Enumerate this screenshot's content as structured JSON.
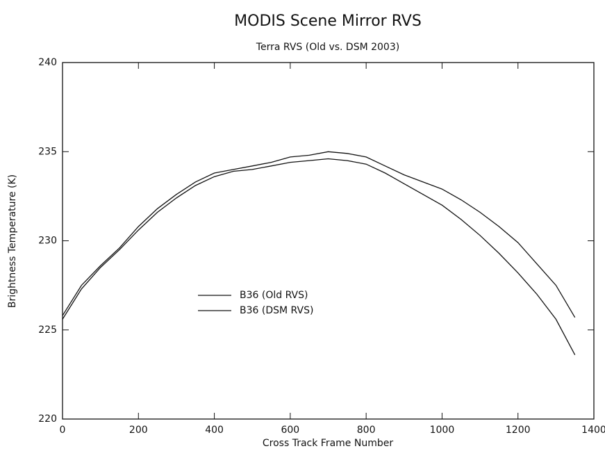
{
  "chart_data": {
    "type": "line",
    "title": "MODIS Scene Mirror RVS",
    "subtitle": "Terra RVS (Old vs. DSM 2003)",
    "x_label": "Cross Track Frame Number",
    "y_label": "Brightness Temperature (K)",
    "x": [
      0,
      50,
      100,
      150,
      200,
      250,
      300,
      350,
      400,
      450,
      500,
      550,
      600,
      650,
      700,
      750,
      800,
      850,
      900,
      950,
      1000,
      1050,
      1100,
      1150,
      1200,
      1250,
      1300,
      1350
    ],
    "series": [
      {
        "name": "B36 (Old RVS)",
        "color": "#111111",
        "values": [
          225.8,
          227.5,
          228.6,
          229.6,
          230.8,
          231.8,
          232.6,
          233.3,
          233.8,
          234.0,
          234.2,
          234.4,
          234.7,
          234.8,
          235.0,
          234.9,
          234.7,
          234.2,
          233.7,
          233.3,
          232.9,
          232.3,
          231.6,
          230.8,
          229.9,
          228.7,
          227.5,
          225.7
        ]
      },
      {
        "name": "B36 (DSM RVS)",
        "color": "#111111",
        "values": [
          225.6,
          227.3,
          228.5,
          229.5,
          230.6,
          231.6,
          232.4,
          233.1,
          233.6,
          233.9,
          234.0,
          234.2,
          234.4,
          234.5,
          234.6,
          234.5,
          234.3,
          233.8,
          233.2,
          232.6,
          232.0,
          231.2,
          230.3,
          229.3,
          228.2,
          227.0,
          225.6,
          223.6
        ]
      }
    ],
    "xlim": [
      0,
      1400
    ],
    "xticks": [
      0,
      200,
      400,
      600,
      800,
      1000,
      1200,
      1400
    ],
    "ylim": [
      220,
      240
    ],
    "yticks": [
      220,
      225,
      230,
      235,
      240
    ],
    "grid": false
  }
}
